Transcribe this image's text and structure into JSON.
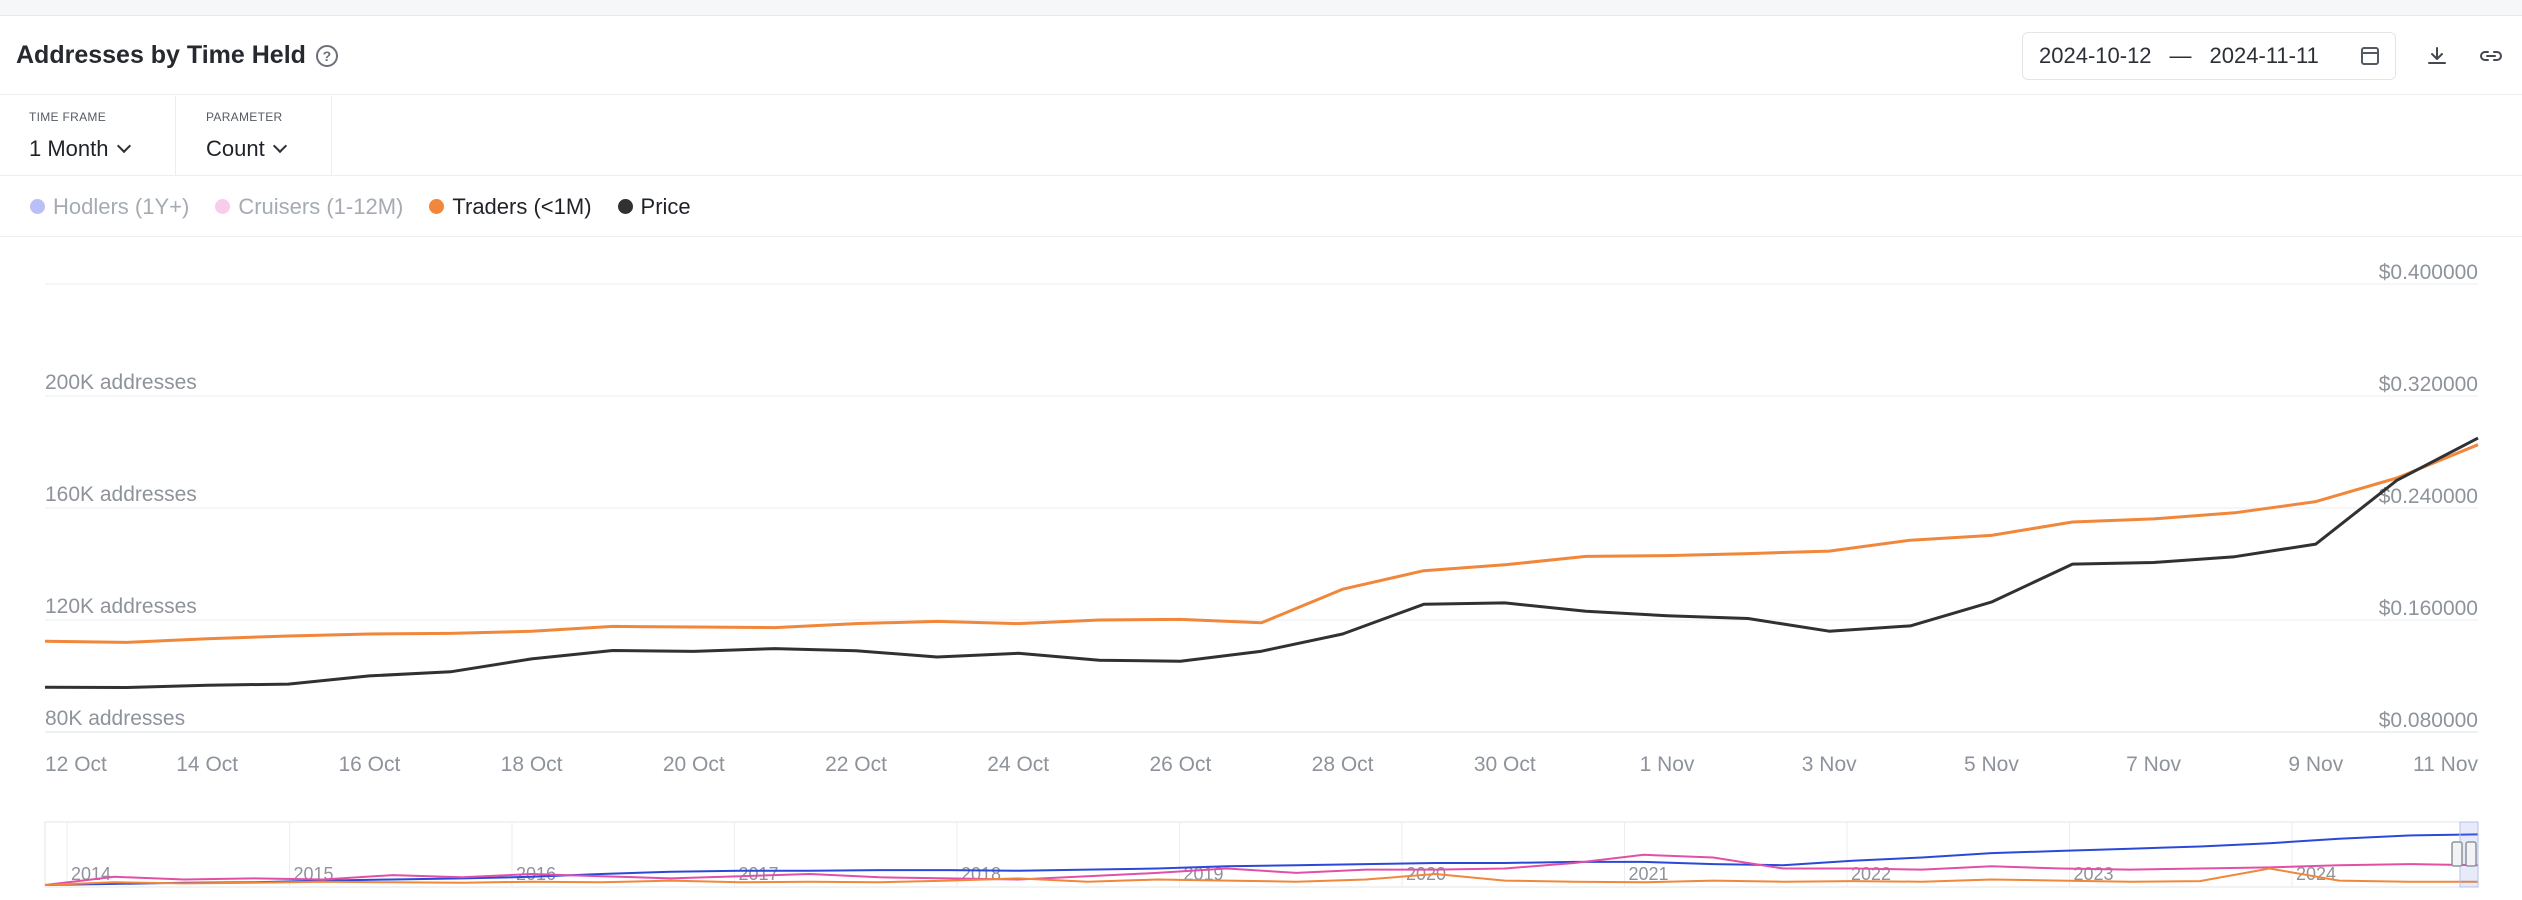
{
  "header": {
    "title": "Addresses by Time Held",
    "date_from": "2024-10-12",
    "date_sep": "—",
    "date_to": "2024-11-11"
  },
  "controls": {
    "timeframe_label": "TIME FRAME",
    "timeframe_value": "1 Month",
    "parameter_label": "PARAMETER",
    "parameter_value": "Count"
  },
  "legend": [
    {
      "label": "Hodlers (1Y+)",
      "color": "#7f8cf0",
      "active": false
    },
    {
      "label": "Cruisers (1-12M)",
      "color": "#f2a3d8",
      "active": false
    },
    {
      "label": "Traders (<1M)",
      "color": "#f0873a",
      "active": true
    },
    {
      "label": "Price",
      "color": "#2f3133",
      "active": true
    }
  ],
  "chart_data": {
    "type": "line",
    "title": "Addresses by Time Held",
    "x": [
      "12 Oct",
      "13 Oct",
      "14 Oct",
      "15 Oct",
      "16 Oct",
      "17 Oct",
      "18 Oct",
      "19 Oct",
      "20 Oct",
      "21 Oct",
      "22 Oct",
      "23 Oct",
      "24 Oct",
      "25 Oct",
      "26 Oct",
      "27 Oct",
      "28 Oct",
      "29 Oct",
      "30 Oct",
      "31 Oct",
      "1 Nov",
      "2 Nov",
      "3 Nov",
      "4 Nov",
      "5 Nov",
      "6 Nov",
      "7 Nov",
      "8 Nov",
      "9 Nov",
      "10 Nov",
      "11 Nov"
    ],
    "x_tick_labels": [
      "12 Oct",
      "14 Oct",
      "16 Oct",
      "18 Oct",
      "20 Oct",
      "22 Oct",
      "24 Oct",
      "26 Oct",
      "28 Oct",
      "30 Oct",
      "1 Nov",
      "3 Nov",
      "5 Nov",
      "7 Nov",
      "9 Nov",
      "11 Nov"
    ],
    "y_left": {
      "ticks": [
        "80K addresses",
        "120K addresses",
        "160K addresses",
        "200K addresses"
      ],
      "tick_values": [
        80000,
        120000,
        160000,
        200000
      ],
      "range": [
        80000,
        240000
      ]
    },
    "y_right": {
      "ticks": [
        "$0.080000",
        "$0.160000",
        "$0.240000",
        "$0.320000",
        "$0.400000"
      ],
      "tick_values": [
        0.08,
        0.16,
        0.24,
        0.32,
        0.4
      ],
      "range": [
        0.08,
        0.4
      ]
    },
    "series": [
      {
        "name": "Traders (<1M)",
        "axis": "left",
        "color": "#f0873a",
        "values": [
          112400,
          112000,
          113300,
          114300,
          115000,
          115200,
          116000,
          117700,
          117500,
          117300,
          118700,
          119500,
          118700,
          120000,
          120200,
          119000,
          131000,
          137600,
          139700,
          142700,
          143000,
          143700,
          144600,
          148500,
          150200,
          155000,
          156100,
          158300,
          162300,
          170700,
          182600
        ]
      },
      {
        "name": "Price",
        "axis": "right",
        "color": "#2f3133",
        "values": [
          0.1119,
          0.1118,
          0.1134,
          0.1142,
          0.1201,
          0.123,
          0.1322,
          0.1382,
          0.1376,
          0.1396,
          0.1381,
          0.1336,
          0.1362,
          0.1313,
          0.1306,
          0.1377,
          0.15,
          0.1712,
          0.1722,
          0.1662,
          0.1631,
          0.1611,
          0.152,
          0.1558,
          0.1728,
          0.1999,
          0.2011,
          0.2052,
          0.2142,
          0.2598,
          0.2899
        ]
      }
    ],
    "grid": true,
    "legend_position": "top-left"
  },
  "navigator": {
    "year_labels": [
      "2014",
      "2015",
      "2016",
      "2017",
      "2018",
      "2019",
      "2020",
      "2021",
      "2022",
      "2023",
      "2024"
    ],
    "series": [
      {
        "color": "#2a49d8",
        "values": [
          0,
          0.02,
          0.04,
          0.05,
          0.08,
          0.1,
          0.12,
          0.15,
          0.2,
          0.24,
          0.26,
          0.26,
          0.27,
          0.27,
          0.26,
          0.28,
          0.3,
          0.34,
          0.36,
          0.38,
          0.4,
          0.4,
          0.42,
          0.42,
          0.38,
          0.36,
          0.44,
          0.5,
          0.58,
          0.62,
          0.66,
          0.7,
          0.76,
          0.84,
          0.9,
          0.92
        ]
      },
      {
        "color": "#e24fa8",
        "values": [
          0,
          0.15,
          0.1,
          0.12,
          0.1,
          0.18,
          0.14,
          0.2,
          0.16,
          0.12,
          0.16,
          0.2,
          0.14,
          0.12,
          0.1,
          0.16,
          0.22,
          0.3,
          0.22,
          0.28,
          0.28,
          0.3,
          0.4,
          0.55,
          0.5,
          0.3,
          0.3,
          0.28,
          0.34,
          0.3,
          0.28,
          0.3,
          0.32,
          0.36,
          0.38,
          0.36
        ]
      },
      {
        "color": "#f0873a",
        "values": [
          0,
          0.05,
          0.03,
          0.04,
          0.06,
          0.05,
          0.04,
          0.06,
          0.05,
          0.08,
          0.05,
          0.06,
          0.05,
          0.08,
          0.12,
          0.06,
          0.1,
          0.08,
          0.06,
          0.1,
          0.2,
          0.08,
          0.06,
          0.05,
          0.08,
          0.06,
          0.07,
          0.06,
          0.1,
          0.08,
          0.06,
          0.07,
          0.3,
          0.08,
          0.06,
          0.06
        ]
      }
    ]
  }
}
